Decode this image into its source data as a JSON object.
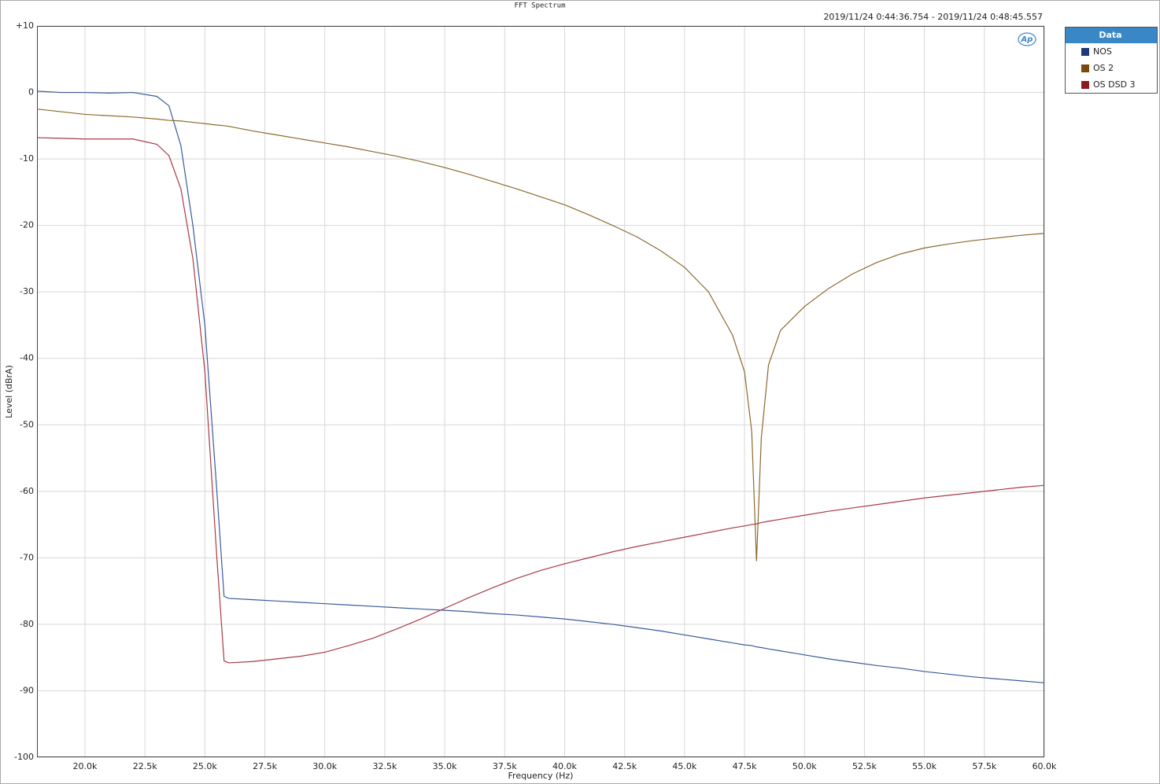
{
  "chart_data": {
    "type": "line",
    "title": "FFT Spectrum",
    "subtitle": "2019/11/24 0:44:36.754 - 2019/11/24 0:48:45.557",
    "logo": "Ap",
    "x_label": "Frequency (Hz)",
    "y_label": "Level (dBrA)",
    "legend_title": "Data",
    "legend_position": "outside-right",
    "grid": true,
    "xlim": [
      18000,
      60000
    ],
    "ylim": [
      -100,
      10
    ],
    "xticks": [
      {
        "value": 20000,
        "label": "20.0k"
      },
      {
        "value": 22500,
        "label": "22.5k"
      },
      {
        "value": 25000,
        "label": "25.0k"
      },
      {
        "value": 27500,
        "label": "27.5k"
      },
      {
        "value": 30000,
        "label": "30.0k"
      },
      {
        "value": 32500,
        "label": "32.5k"
      },
      {
        "value": 35000,
        "label": "35.0k"
      },
      {
        "value": 37500,
        "label": "37.5k"
      },
      {
        "value": 40000,
        "label": "40.0k"
      },
      {
        "value": 42500,
        "label": "42.5k"
      },
      {
        "value": 45000,
        "label": "45.0k"
      },
      {
        "value": 47500,
        "label": "47.5k"
      },
      {
        "value": 50000,
        "label": "50.0k"
      },
      {
        "value": 52500,
        "label": "52.5k"
      },
      {
        "value": 55000,
        "label": "55.0k"
      },
      {
        "value": 57500,
        "label": "57.5k"
      },
      {
        "value": 60000,
        "label": "60.0k"
      }
    ],
    "yticks": [
      {
        "value": 10,
        "label": "+10"
      },
      0,
      -10,
      -20,
      -30,
      -40,
      -50,
      -60,
      -70,
      -80,
      -90,
      -100
    ],
    "x": [
      18000,
      19000,
      20000,
      21000,
      22000,
      23000,
      23500,
      24000,
      24500,
      25000,
      25500,
      25800,
      26000,
      27000,
      28000,
      29000,
      30000,
      31000,
      32000,
      33000,
      34000,
      35000,
      36000,
      37000,
      38000,
      39000,
      40000,
      41000,
      42000,
      43000,
      44000,
      45000,
      46000,
      47000,
      47500,
      47800,
      48000,
      48200,
      48500,
      49000,
      50000,
      51000,
      52000,
      53000,
      54000,
      55000,
      56000,
      57000,
      58000,
      59000,
      60000
    ],
    "series": [
      {
        "name": "NOS",
        "color": "#3a5a9c",
        "legend_color": "#1f3a7a",
        "values": [
          0.2,
          0,
          0,
          -0.1,
          0,
          -0.6,
          -2,
          -8,
          -20,
          -35,
          -60,
          -75.8,
          -76.1,
          -76.3,
          -76.5,
          -76.7,
          -76.9,
          -77.1,
          -77.3,
          -77.5,
          -77.7,
          -77.9,
          -78.1,
          -78.4,
          -78.6,
          -78.9,
          -79.2,
          -79.6,
          -80.0,
          -80.5,
          -81.0,
          -81.6,
          -82.2,
          -82.8,
          -83.1,
          -83.2,
          -83.4,
          -83.5,
          -83.7,
          -84.0,
          -84.6,
          -85.2,
          -85.7,
          -86.2,
          -86.6,
          -87.1,
          -87.5,
          -87.9,
          -88.2,
          -88.5,
          -88.8
        ]
      },
      {
        "name": "OS 2",
        "color": "#8b6a2e",
        "legend_color": "#7a4a10",
        "values": [
          -2.5,
          -2.9,
          -3.3,
          -3.5,
          -3.7,
          -4,
          -4.2,
          -4.3,
          -4.5,
          -4.7,
          -4.9,
          -5,
          -5.1,
          -5.8,
          -6.4,
          -7,
          -7.6,
          -8.2,
          -8.9,
          -9.6,
          -10.4,
          -11.3,
          -12.3,
          -13.4,
          -14.5,
          -15.7,
          -16.9,
          -18.4,
          -20,
          -21.7,
          -23.8,
          -26.3,
          -30,
          -36.5,
          -42,
          -51,
          -70.5,
          -52,
          -41,
          -35.8,
          -32.2,
          -29.5,
          -27.3,
          -25.6,
          -24.3,
          -23.4,
          -22.8,
          -22.3,
          -21.9,
          -21.5,
          -21.2
        ]
      },
      {
        "name": "OS DSD 3",
        "color": "#a83a45",
        "legend_color": "#8b1a20",
        "values": [
          -6.8,
          -6.9,
          -7,
          -7,
          -7,
          -7.8,
          -9.5,
          -14.5,
          -25,
          -42,
          -70,
          -85.5,
          -85.8,
          -85.6,
          -85.2,
          -84.8,
          -84.2,
          -83.2,
          -82.1,
          -80.7,
          -79.2,
          -77.6,
          -76,
          -74.5,
          -73.1,
          -71.9,
          -70.9,
          -70,
          -69.1,
          -68.3,
          -67.6,
          -66.9,
          -66.2,
          -65.5,
          -65.2,
          -65,
          -64.9,
          -64.7,
          -64.5,
          -64.2,
          -63.6,
          -63,
          -62.5,
          -62,
          -61.5,
          -61,
          -60.6,
          -60.2,
          -59.8,
          -59.4,
          -59.1
        ]
      }
    ]
  }
}
